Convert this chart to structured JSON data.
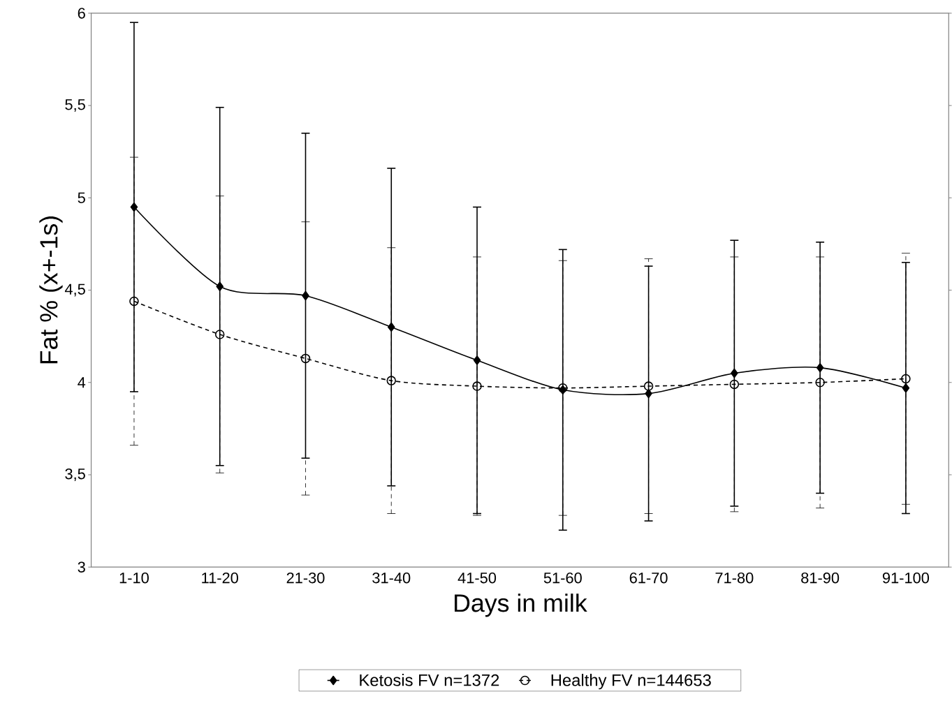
{
  "chart_data": {
    "type": "line",
    "xlabel": "Days in milk",
    "ylabel": "Fat % (x+-1s)",
    "categories": [
      "1-10",
      "11-20",
      "21-30",
      "31-40",
      "41-50",
      "51-60",
      "61-70",
      "71-80",
      "81-90",
      "91-100"
    ],
    "series": [
      {
        "name": "Ketosis FV n=1372",
        "color": "#000000",
        "marker": "diamond",
        "line_style": "solid",
        "values": [
          4.95,
          4.52,
          4.47,
          4.3,
          4.12,
          3.96,
          3.94,
          4.05,
          4.08,
          3.97
        ],
        "errors": [
          [
            3.95,
            5.95
          ],
          [
            3.55,
            5.49
          ],
          [
            3.59,
            5.35
          ],
          [
            3.44,
            5.16
          ],
          [
            3.29,
            4.95
          ],
          [
            3.2,
            4.72
          ],
          [
            3.25,
            4.63
          ],
          [
            3.33,
            4.77
          ],
          [
            3.4,
            4.76
          ],
          [
            3.29,
            4.65
          ]
        ]
      },
      {
        "name": "Healthy FV n=144653",
        "color": "#000000",
        "marker": "circle",
        "line_style": "dashed",
        "values": [
          4.44,
          4.26,
          4.13,
          4.01,
          3.98,
          3.97,
          3.98,
          3.99,
          4.0,
          4.02
        ],
        "errors": [
          [
            3.66,
            5.22
          ],
          [
            3.51,
            5.01
          ],
          [
            3.39,
            4.87
          ],
          [
            3.29,
            4.73
          ],
          [
            3.28,
            4.68
          ],
          [
            3.28,
            4.66
          ],
          [
            3.29,
            4.67
          ],
          [
            3.3,
            4.68
          ],
          [
            3.32,
            4.68
          ],
          [
            3.34,
            4.7
          ]
        ]
      }
    ],
    "ylim": [
      3,
      6
    ],
    "yticks": [
      3,
      {
        "value": 3.5,
        "label": "3,5"
      },
      4,
      {
        "value": 4.5,
        "label": "4,5"
      },
      5,
      {
        "value": 5.5,
        "label": "5,5"
      },
      6
    ],
    "grid": false,
    "legend": "bottom"
  }
}
